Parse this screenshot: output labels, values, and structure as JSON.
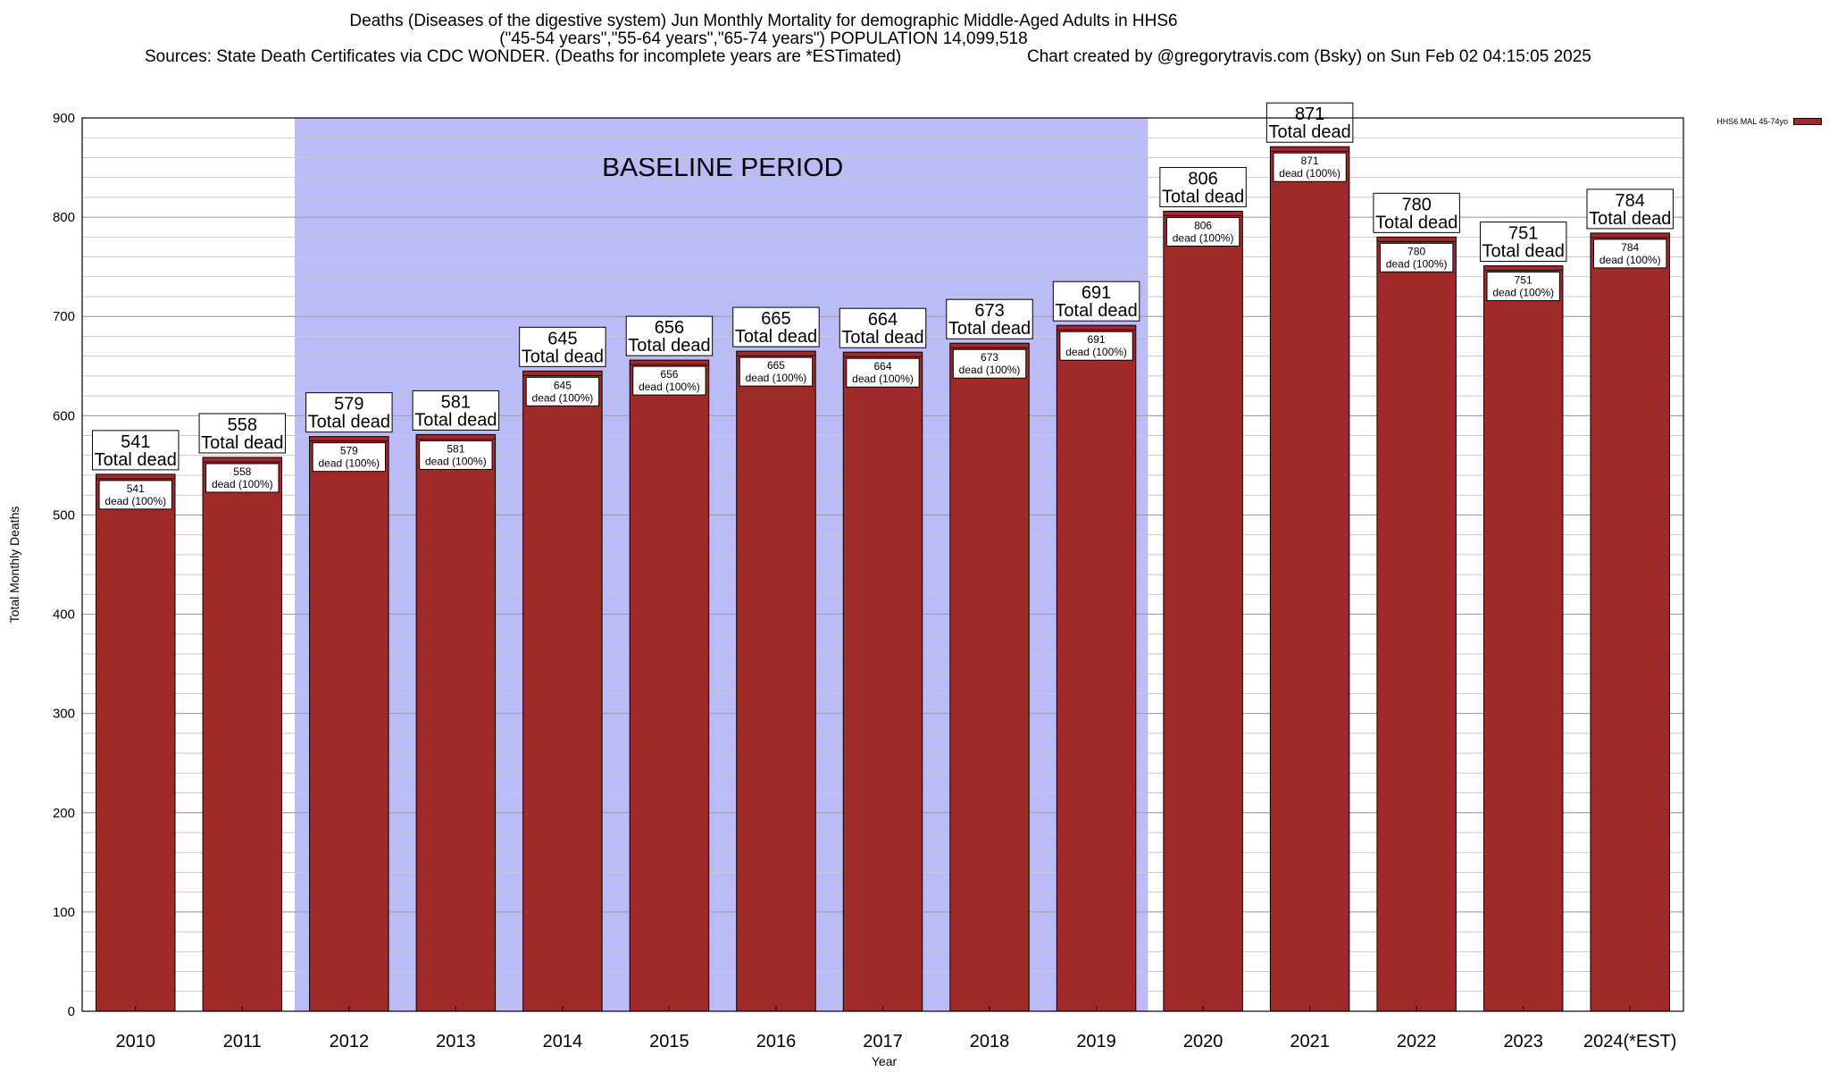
{
  "header": {
    "line1": "Deaths (Diseases of the digestive system) Jun Monthly Mortality for demographic Middle-Aged Adults in HHS6",
    "line2": "(\"45-54 years\",\"55-64 years\",\"65-74 years\") POPULATION 14,099,518",
    "sources": "Sources: State Death Certificates via CDC WONDER. (Deaths for incomplete years are *ESTimated)",
    "credit": "Chart created by @gregorytravis.com (Bsky) on Sun Feb 02 04:15:05 2025"
  },
  "legend": {
    "label": "HHS6 MAL 45-74yo",
    "color": "#a0292a"
  },
  "chart_data": {
    "type": "bar",
    "title": "Deaths (Diseases of the digestive system) Jun Monthly Mortality for demographic Middle-Aged Adults in HHS6",
    "xlabel": "Year",
    "ylabel": "Total Monthly Deaths",
    "ylim": [
      0,
      900
    ],
    "yticks": [
      0,
      100,
      200,
      300,
      400,
      500,
      600,
      700,
      800,
      900
    ],
    "minor_y_step": 20,
    "grid": true,
    "legend_position": "top-right",
    "categories": [
      "2010",
      "2011",
      "2012",
      "2013",
      "2014",
      "2015",
      "2016",
      "2017",
      "2018",
      "2019",
      "2020",
      "2021",
      "2022",
      "2023",
      "2024(*EST)"
    ],
    "series": [
      {
        "name": "HHS6 MAL 45-74yo",
        "color": "#a0292a",
        "values": [
          541,
          558,
          579,
          581,
          645,
          656,
          665,
          664,
          673,
          691,
          806,
          871,
          780,
          751,
          784
        ]
      }
    ],
    "top_label_suffix": "Total dead",
    "inner_label_suffix": "dead (100%)",
    "baseline_period": {
      "label": "BASELINE PERIOD",
      "from": "2012",
      "to": "2019",
      "color": "#bbbbf8"
    }
  }
}
